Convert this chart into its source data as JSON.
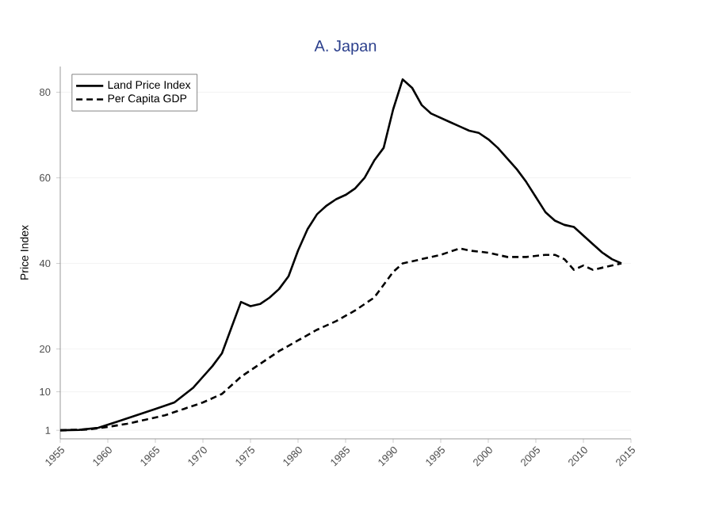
{
  "chart_data": {
    "type": "line",
    "title": "A. Japan",
    "ylabel": "Price Index",
    "xlim": [
      1955,
      2015
    ],
    "xticks": [
      1955,
      1960,
      1965,
      1970,
      1975,
      1980,
      1985,
      1990,
      1995,
      2000,
      2005,
      2010,
      2015
    ],
    "ylim": [
      -1,
      86
    ],
    "yticks": [
      1,
      10,
      20,
      40,
      60,
      80
    ],
    "grid": "y",
    "legend": "top left",
    "marker": "none",
    "series": [
      {
        "name": "Land Price Index",
        "color": "#000000",
        "line_style": "solid",
        "x": [
          1955,
          1957,
          1959,
          1961,
          1963,
          1965,
          1967,
          1969,
          1971,
          1972,
          1973,
          1974,
          1975,
          1976,
          1977,
          1978,
          1979,
          1980,
          1981,
          1982,
          1983,
          1984,
          1985,
          1986,
          1987,
          1988,
          1989,
          1990,
          1991,
          1992,
          1993,
          1994,
          1995,
          1996,
          1997,
          1998,
          1999,
          2000,
          2001,
          2002,
          2003,
          2004,
          2005,
          2006,
          2007,
          2008,
          2009,
          2010,
          2011,
          2012,
          2013,
          2014
        ],
        "values": [
          1,
          1.1,
          1.6,
          3,
          4.5,
          6,
          7.5,
          11,
          16,
          19,
          25,
          31,
          30,
          30.5,
          32,
          34,
          37,
          43,
          48,
          51.5,
          53.5,
          55,
          56,
          57.5,
          60,
          64,
          67,
          76,
          83,
          81,
          77,
          75,
          74,
          73,
          72,
          71,
          70.5,
          69,
          67,
          64.5,
          62,
          59,
          55.5,
          52,
          50,
          49,
          48.5,
          46.5,
          44.5,
          42.5,
          41,
          40
        ]
      },
      {
        "name": "Per Capita GDP",
        "color": "#000000",
        "line_style": "dashed",
        "x": [
          1955,
          1958,
          1960,
          1962,
          1964,
          1966,
          1968,
          1970,
          1972,
          1974,
          1976,
          1978,
          1980,
          1982,
          1984,
          1986,
          1988,
          1990,
          1991,
          1993,
          1995,
          1997,
          1998,
          2000,
          2002,
          2004,
          2006,
          2007,
          2008,
          2009,
          2010,
          2011,
          2012,
          2014
        ],
        "values": [
          1,
          1.2,
          1.8,
          2.5,
          3.5,
          4.5,
          6,
          7.5,
          9.5,
          13.5,
          16.5,
          19.5,
          22,
          24.5,
          26.5,
          29,
          32,
          38,
          40,
          41,
          42,
          43.5,
          43,
          42.5,
          41.5,
          41.5,
          42,
          42,
          41,
          38.5,
          39.5,
          38.5,
          39,
          40
        ]
      }
    ]
  }
}
